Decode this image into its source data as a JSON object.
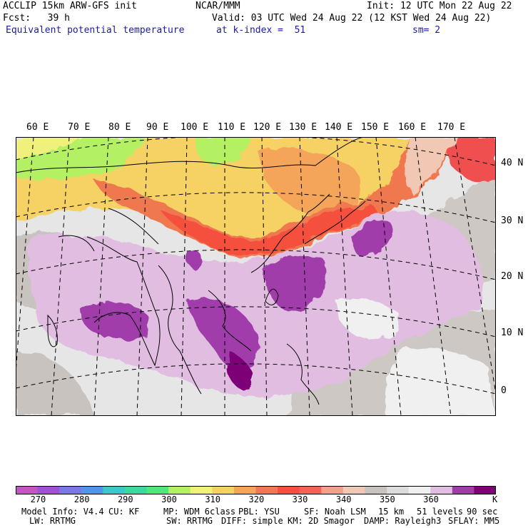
{
  "header": {
    "model": "ACCLIP 15km ARW-GFS init",
    "center": "NCAR/MMM",
    "init": "Init: 12 UTC Mon 22 Aug 22",
    "fcst": "Fcst:   39 h",
    "valid": "Valid: 03 UTC Wed 24 Aug 22 (12 KST Wed 24 Aug 22)",
    "field": "Equivalent potential temperature",
    "level": "at k-index =  51",
    "smooth": "sm= 2"
  },
  "map": {
    "lon_labels": [
      "60 E",
      "70 E",
      "80 E",
      "90 E",
      "100 E",
      "110 E",
      "120 E",
      "130 E",
      "140 E",
      "150 E",
      "160 E",
      "170 E"
    ],
    "lat_labels": [
      "40 N",
      "30 N",
      "20 N",
      "10 N",
      "0"
    ]
  },
  "colorbar": {
    "colors": [
      "#c455c4",
      "#a050d0",
      "#7b78e6",
      "#4f97e6",
      "#3cc8c8",
      "#3cd8a0",
      "#50e878",
      "#b4f064",
      "#f0f07c",
      "#f5d264",
      "#f5a55a",
      "#f07850",
      "#f5503c",
      "#f06450",
      "#f5a08c",
      "#f0c8b4",
      "#c8c3be",
      "#dcdcdc",
      "#f0f0f0",
      "#e1bee1",
      "#a03caa",
      "#7d0078"
    ],
    "labels": [
      "270",
      "280",
      "290",
      "300",
      "310",
      "320",
      "330",
      "340",
      "350",
      "360"
    ],
    "unit": "K"
  },
  "footer": {
    "line1": [
      "Model Info: V4.4",
      "CU: KF",
      "MP: WDM 6class",
      "PBL: YSU",
      "SF: Noah LSM",
      "15 km",
      "51 levels",
      "90 sec"
    ],
    "line2": [
      "LW: RRTMG",
      "SW: RRTMG",
      "DIFF: simple",
      "KM: 2D Smagor",
      "DAMP: Rayleigh3",
      "SFLAY: MM5"
    ]
  }
}
